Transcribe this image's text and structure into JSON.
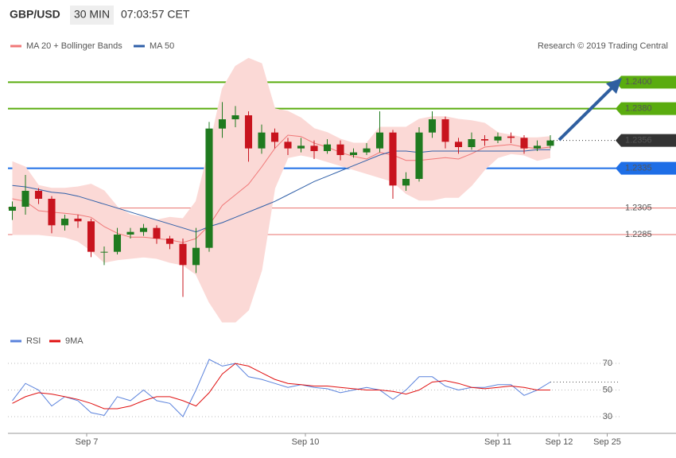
{
  "chart_data": [
    {
      "type": "candlestick",
      "title": "GBP/USD",
      "timeframe": "30 MIN",
      "time": "07:03:57 CET",
      "credit": "Research © 2019 Trading Central",
      "xlim": [
        0,
        140
      ],
      "ylim": [
        1.221,
        1.2423
      ],
      "up_color": "#1f7a1f",
      "down_color": "#c8141e",
      "x": [
        1,
        4,
        7,
        10,
        13,
        16,
        19,
        22,
        25,
        28,
        31,
        34,
        37,
        40,
        43,
        46,
        49,
        52,
        55,
        58,
        61,
        64,
        67,
        70,
        73,
        76,
        79,
        82,
        85,
        88,
        91,
        94,
        97,
        100,
        103,
        106,
        109,
        112,
        115,
        118,
        121,
        124
      ],
      "open": [
        1.2303,
        1.2306,
        1.2318,
        1.2312,
        1.2292,
        1.2297,
        1.2295,
        1.2272,
        1.2272,
        1.2285,
        1.2287,
        1.229,
        1.2282,
        1.2278,
        1.2262,
        1.2275,
        1.2365,
        1.2372,
        1.2375,
        1.235,
        1.2362,
        1.2355,
        1.235,
        1.2352,
        1.2348,
        1.2353,
        1.2345,
        1.2347,
        1.235,
        1.2362,
        1.2322,
        1.2327,
        1.2362,
        1.2372,
        1.2355,
        1.2351,
        1.2357,
        1.2356,
        1.2359,
        1.2358,
        1.235,
        1.2352
      ],
      "high": [
        1.231,
        1.233,
        1.232,
        1.2314,
        1.23,
        1.23,
        1.2297,
        1.2276,
        1.229,
        1.229,
        1.2293,
        1.2292,
        1.2284,
        1.2282,
        1.229,
        1.237,
        1.2385,
        1.2382,
        1.2378,
        1.2368,
        1.2365,
        1.2358,
        1.2358,
        1.2356,
        1.2357,
        1.2356,
        1.235,
        1.2354,
        1.2378,
        1.2364,
        1.2332,
        1.2366,
        1.2378,
        1.2374,
        1.2358,
        1.2362,
        1.236,
        1.2362,
        1.2362,
        1.236,
        1.2356,
        1.236
      ],
      "low": [
        1.2296,
        1.23,
        1.2308,
        1.2286,
        1.2288,
        1.229,
        1.2268,
        1.2262,
        1.227,
        1.2282,
        1.2284,
        1.2278,
        1.2274,
        1.2238,
        1.2256,
        1.2272,
        1.2358,
        1.2366,
        1.234,
        1.2346,
        1.235,
        1.2345,
        1.2347,
        1.2342,
        1.2346,
        1.2341,
        1.2343,
        1.2345,
        1.2347,
        1.2312,
        1.2318,
        1.2325,
        1.2358,
        1.235,
        1.2346,
        1.2349,
        1.2352,
        1.2354,
        1.2354,
        1.2346,
        1.2348,
        1.235
      ],
      "close": [
        1.2306,
        1.2318,
        1.2312,
        1.2292,
        1.2297,
        1.2295,
        1.2272,
        1.2272,
        1.2285,
        1.2287,
        1.229,
        1.2282,
        1.2278,
        1.2262,
        1.2275,
        1.2365,
        1.2372,
        1.2375,
        1.235,
        1.2362,
        1.2355,
        1.235,
        1.2352,
        1.2348,
        1.2353,
        1.2345,
        1.2347,
        1.235,
        1.2362,
        1.2322,
        1.2327,
        1.2362,
        1.2372,
        1.2355,
        1.2351,
        1.2357,
        1.2356,
        1.2359,
        1.2358,
        1.235,
        1.2352,
        1.2356
      ],
      "overlays": [
        {
          "name": "MA 20 + Bollinger Bands",
          "color": "#f07878",
          "band_color": "#fbd9d6",
          "values": [
            1.2312,
            1.231,
            1.2303,
            1.2302,
            1.2301,
            1.23,
            1.2298,
            1.2291,
            1.2286,
            1.2283,
            1.2283,
            1.2282,
            1.2281,
            1.2279,
            1.2282,
            1.2292,
            1.2307,
            1.2315,
            1.2323,
            1.2336,
            1.235,
            1.236,
            1.2359,
            1.2354,
            1.2351,
            1.2347,
            1.2344,
            1.2342,
            1.2347,
            1.2345,
            1.2341,
            1.2341,
            1.2342,
            1.2343,
            1.2342,
            1.2346,
            1.2351,
            1.2352,
            1.2353,
            1.2351,
            1.235,
            1.2351
          ],
          "upper": [
            1.234,
            1.2336,
            1.2322,
            1.232,
            1.232,
            1.2321,
            1.2323,
            1.2318,
            1.2306,
            1.23,
            1.2298,
            1.2296,
            1.2298,
            1.2297,
            1.231,
            1.235,
            1.2395,
            1.2412,
            1.2418,
            1.2414,
            1.238,
            1.2378,
            1.2373,
            1.2365,
            1.2362,
            1.2357,
            1.2354,
            1.2354,
            1.2366,
            1.2366,
            1.2366,
            1.2372,
            1.2374,
            1.2374,
            1.2372,
            1.2371,
            1.2369,
            1.2362,
            1.236,
            1.2358,
            1.2358,
            1.2359
          ],
          "lower": [
            1.2285,
            1.2285,
            1.2285,
            1.2284,
            1.2283,
            1.228,
            1.2273,
            1.2264,
            1.2266,
            1.2267,
            1.2268,
            1.2267,
            1.2264,
            1.2262,
            1.2255,
            1.2234,
            1.2219,
            1.2219,
            1.2228,
            1.2258,
            1.232,
            1.2343,
            1.2345,
            1.2343,
            1.234,
            1.2337,
            1.2334,
            1.2331,
            1.2328,
            1.2325,
            1.2316,
            1.2311,
            1.2311,
            1.2313,
            1.2313,
            1.2322,
            1.2334,
            1.2343,
            1.2346,
            1.2345,
            1.2341,
            1.2343
          ]
        },
        {
          "name": "MA 50",
          "color": "#2f5fa8",
          "values": [
            1.2322,
            1.2321,
            1.2319,
            1.2317,
            1.2316,
            1.2314,
            1.2311,
            1.2308,
            1.2305,
            1.2302,
            1.2299,
            1.2296,
            1.2293,
            1.229,
            1.2287,
            1.2291,
            1.2294,
            1.2298,
            1.2302,
            1.2306,
            1.231,
            1.2315,
            1.232,
            1.2325,
            1.2329,
            1.2333,
            1.2337,
            1.2341,
            1.2345,
            1.2348,
            1.2348,
            1.2347,
            1.2348,
            1.2348,
            1.2348,
            1.2348,
            1.2348,
            1.2348,
            1.2348,
            1.2348,
            1.2349,
            1.2349
          ]
        }
      ],
      "levels": [
        {
          "value": 1.24,
          "label": "1.2400",
          "color": "#5aac0f",
          "boxed": true,
          "dotted": false
        },
        {
          "value": 1.238,
          "label": "1.2380",
          "color": "#5aac0f",
          "boxed": true,
          "dotted": false
        },
        {
          "value": 1.2356,
          "label": "1.2356",
          "color": "#333333",
          "boxed": true,
          "dotted": true
        },
        {
          "value": 1.2335,
          "label": "1.2335",
          "color": "#1e6ee6",
          "boxed": true,
          "dotted": false
        },
        {
          "value": 1.2305,
          "label": "1.2305",
          "color": "#e8706c",
          "boxed": false,
          "dotted": false
        },
        {
          "value": 1.2285,
          "label": "1.2285",
          "color": "#e8706c",
          "boxed": false,
          "dotted": false
        }
      ]
    },
    {
      "type": "line",
      "xlim": [
        0,
        140
      ],
      "ylim": [
        20,
        80
      ],
      "yticks": [
        30,
        50,
        70
      ],
      "grid": true,
      "x": [
        1,
        4,
        7,
        10,
        13,
        16,
        19,
        22,
        25,
        28,
        31,
        34,
        37,
        40,
        43,
        46,
        49,
        52,
        55,
        58,
        61,
        64,
        67,
        70,
        73,
        76,
        79,
        82,
        85,
        88,
        91,
        94,
        97,
        100,
        103,
        106,
        109,
        112,
        115,
        118,
        121,
        124
      ],
      "xticks": [
        {
          "value": 18,
          "label": "Sep 7"
        },
        {
          "value": 68,
          "label": "Sep 10"
        },
        {
          "value": 112,
          "label": "Sep 11"
        },
        {
          "value": 126,
          "label": "Sep 12"
        },
        {
          "value": 137,
          "label": "Sep 25"
        }
      ],
      "series": [
        {
          "name": "RSI",
          "color": "#5a82dc",
          "values": [
            42,
            55,
            50,
            38,
            45,
            42,
            33,
            31,
            45,
            42,
            50,
            42,
            40,
            30,
            50,
            73,
            68,
            70,
            60,
            58,
            55,
            52,
            54,
            52,
            51,
            48,
            50,
            52,
            50,
            43,
            50,
            60,
            60,
            53,
            50,
            52,
            52,
            54,
            54,
            46,
            50,
            56
          ]
        },
        {
          "name": "9MA",
          "color": "#e01010",
          "values": [
            40,
            45,
            48,
            47,
            45,
            43,
            40,
            36,
            36,
            38,
            42,
            45,
            45,
            42,
            38,
            48,
            62,
            70,
            68,
            63,
            58,
            55,
            54,
            53,
            53,
            52,
            51,
            50,
            50,
            49,
            47,
            50,
            56,
            57,
            55,
            52,
            51,
            52,
            53,
            52,
            50,
            50
          ]
        }
      ]
    }
  ]
}
